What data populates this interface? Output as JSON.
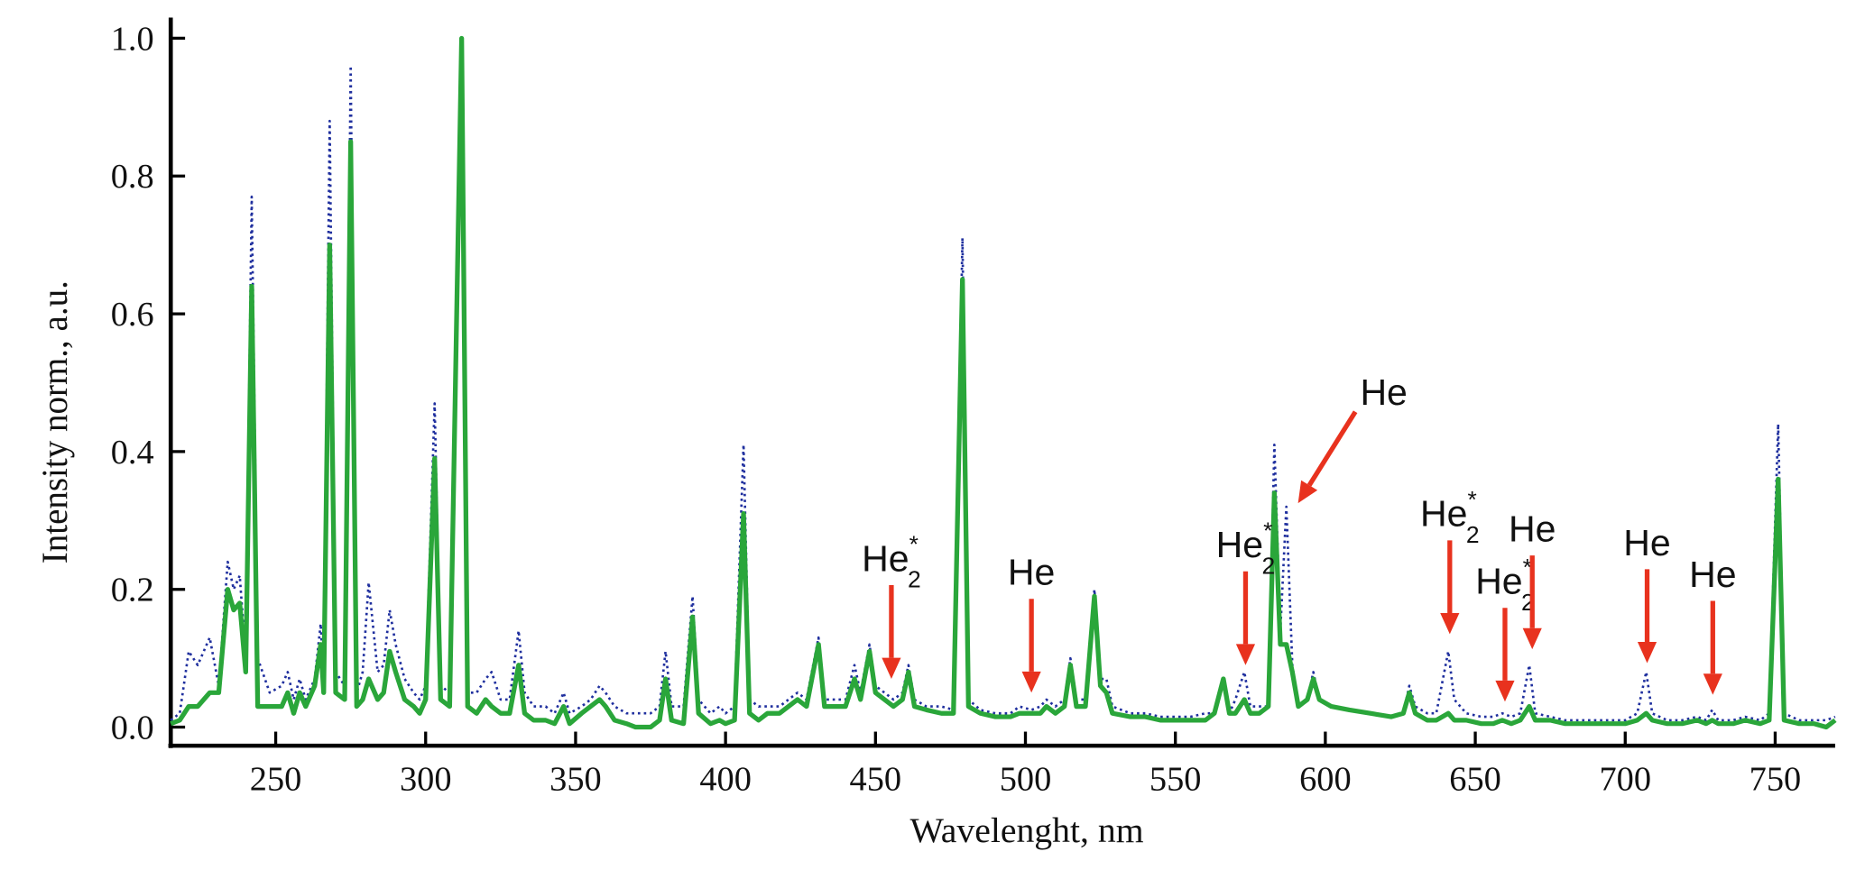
{
  "chart_data": {
    "type": "line",
    "x_label": "Wavelenght, nm",
    "y_label": "Intensity norm., a.u.",
    "xlim": [
      215,
      770
    ],
    "ylim": [
      -0.027,
      1.03
    ],
    "xticks": [
      250,
      300,
      350,
      400,
      450,
      500,
      550,
      600,
      650,
      700,
      750
    ],
    "yticks": [
      {
        "value": 0,
        "label": "0.0"
      },
      {
        "value": 0.2,
        "label": "0.2"
      },
      {
        "value": 0.4,
        "label": "0.4"
      },
      {
        "value": 0.6,
        "label": "0.6"
      },
      {
        "value": 0.8,
        "label": "0.8"
      },
      {
        "value": 1.0,
        "label": "1.0"
      }
    ],
    "x": [
      215,
      218,
      221,
      224,
      228,
      231,
      234,
      236,
      238,
      240,
      242,
      244,
      248,
      252,
      254,
      256,
      258,
      260,
      263,
      265,
      266,
      268,
      270,
      273,
      275,
      277,
      279,
      281,
      284,
      286,
      288,
      290,
      293,
      296,
      298,
      300,
      303,
      305,
      308,
      312,
      314,
      317,
      320,
      322,
      325,
      328,
      331,
      333,
      336,
      340,
      343,
      346,
      348,
      352,
      355,
      358,
      360,
      363,
      367,
      370,
      375,
      378,
      380,
      382,
      386,
      389,
      391,
      395,
      398,
      400,
      403,
      406,
      408,
      411,
      414,
      418,
      421,
      424,
      427,
      431,
      433,
      437,
      440,
      443,
      445,
      448,
      450,
      453,
      456,
      459,
      461,
      463,
      467,
      472,
      476,
      479,
      481,
      485,
      490,
      495,
      498,
      502,
      505,
      507,
      510,
      513,
      515,
      517,
      520,
      523,
      525,
      527,
      529,
      535,
      540,
      545,
      550,
      555,
      560,
      563,
      566,
      568,
      570,
      573,
      575,
      578,
      581,
      583,
      585,
      587,
      589,
      591,
      594,
      596,
      598,
      602,
      608,
      615,
      622,
      626,
      628,
      630,
      634,
      637,
      641,
      643,
      647,
      652,
      656,
      659,
      662,
      665,
      668,
      670,
      675,
      680,
      685,
      690,
      695,
      700,
      704,
      707,
      709,
      714,
      719,
      724,
      727,
      729,
      731,
      736,
      740,
      745,
      748,
      751,
      753,
      758,
      763,
      767,
      770
    ],
    "series": [
      {
        "color": "#1f2f9e",
        "dash": "dotted",
        "values": [
          0.01,
          0.02,
          0.11,
          0.09,
          0.13,
          0.06,
          0.24,
          0.2,
          0.22,
          0.1,
          0.77,
          0.1,
          0.05,
          0.06,
          0.08,
          0.04,
          0.07,
          0.04,
          0.07,
          0.15,
          0.07,
          0.88,
          0.08,
          0.06,
          0.96,
          0.05,
          0.08,
          0.21,
          0.08,
          0.09,
          0.17,
          0.12,
          0.07,
          0.05,
          0.04,
          0.06,
          0.47,
          0.06,
          0.05,
          1.0,
          0.05,
          0.05,
          0.07,
          0.08,
          0.04,
          0.04,
          0.14,
          0.05,
          0.03,
          0.03,
          0.02,
          0.05,
          0.02,
          0.03,
          0.04,
          0.06,
          0.05,
          0.03,
          0.02,
          0.02,
          0.02,
          0.03,
          0.11,
          0.03,
          0.03,
          0.19,
          0.04,
          0.02,
          0.03,
          0.02,
          0.03,
          0.41,
          0.04,
          0.03,
          0.03,
          0.03,
          0.04,
          0.05,
          0.04,
          0.13,
          0.04,
          0.04,
          0.04,
          0.09,
          0.05,
          0.12,
          0.06,
          0.05,
          0.04,
          0.05,
          0.09,
          0.04,
          0.03,
          0.03,
          0.025,
          0.71,
          0.04,
          0.025,
          0.02,
          0.02,
          0.03,
          0.025,
          0.03,
          0.04,
          0.03,
          0.04,
          0.1,
          0.04,
          0.04,
          0.2,
          0.07,
          0.07,
          0.03,
          0.02,
          0.02,
          0.015,
          0.015,
          0.015,
          0.02,
          0.02,
          0.07,
          0.02,
          0.04,
          0.08,
          0.03,
          0.03,
          0.03,
          0.41,
          0.14,
          0.32,
          0.09,
          0.03,
          0.04,
          0.08,
          0.04,
          0.03,
          0.025,
          0.02,
          0.015,
          0.02,
          0.06,
          0.03,
          0.02,
          0.02,
          0.11,
          0.04,
          0.02,
          0.015,
          0.015,
          0.02,
          0.015,
          0.02,
          0.09,
          0.02,
          0.015,
          0.01,
          0.01,
          0.01,
          0.01,
          0.01,
          0.02,
          0.08,
          0.02,
          0.01,
          0.01,
          0.015,
          0.01,
          0.025,
          0.01,
          0.01,
          0.015,
          0.01,
          0.02,
          0.44,
          0.02,
          0.01,
          0.01,
          0.01,
          0.015
        ]
      },
      {
        "color": "#2aa63a",
        "dash": "solid",
        "values": [
          0.005,
          0.01,
          0.03,
          0.03,
          0.05,
          0.05,
          0.2,
          0.17,
          0.18,
          0.08,
          0.64,
          0.03,
          0.03,
          0.03,
          0.05,
          0.02,
          0.05,
          0.03,
          0.06,
          0.12,
          0.05,
          0.7,
          0.05,
          0.04,
          0.85,
          0.03,
          0.04,
          0.07,
          0.04,
          0.05,
          0.11,
          0.08,
          0.04,
          0.03,
          0.02,
          0.04,
          0.39,
          0.04,
          0.03,
          1.0,
          0.03,
          0.02,
          0.04,
          0.03,
          0.02,
          0.02,
          0.09,
          0.02,
          0.01,
          0.01,
          0.005,
          0.03,
          0.005,
          0.02,
          0.03,
          0.04,
          0.03,
          0.01,
          0.005,
          0.0,
          0.0,
          0.01,
          0.07,
          0.01,
          0.005,
          0.16,
          0.02,
          0.005,
          0.01,
          0.005,
          0.01,
          0.31,
          0.02,
          0.01,
          0.02,
          0.02,
          0.03,
          0.04,
          0.03,
          0.12,
          0.03,
          0.03,
          0.03,
          0.07,
          0.04,
          0.11,
          0.05,
          0.04,
          0.03,
          0.04,
          0.08,
          0.03,
          0.025,
          0.02,
          0.02,
          0.65,
          0.03,
          0.02,
          0.015,
          0.015,
          0.02,
          0.02,
          0.02,
          0.03,
          0.02,
          0.03,
          0.09,
          0.03,
          0.03,
          0.19,
          0.06,
          0.05,
          0.02,
          0.015,
          0.015,
          0.01,
          0.01,
          0.01,
          0.01,
          0.02,
          0.07,
          0.02,
          0.02,
          0.04,
          0.02,
          0.02,
          0.03,
          0.34,
          0.12,
          0.12,
          0.08,
          0.03,
          0.04,
          0.07,
          0.04,
          0.03,
          0.025,
          0.02,
          0.015,
          0.02,
          0.05,
          0.02,
          0.01,
          0.01,
          0.02,
          0.01,
          0.01,
          0.005,
          0.005,
          0.01,
          0.005,
          0.01,
          0.03,
          0.01,
          0.01,
          0.005,
          0.005,
          0.005,
          0.005,
          0.005,
          0.01,
          0.02,
          0.01,
          0.005,
          0.005,
          0.01,
          0.005,
          0.01,
          0.005,
          0.005,
          0.01,
          0.005,
          0.01,
          0.36,
          0.01,
          0.005,
          0.005,
          0.0,
          0.01
        ]
      }
    ],
    "annotations": [
      {
        "text": "He",
        "sub": "2",
        "sup": "*",
        "x": 455.3,
        "y": 0.07,
        "arrow": "down"
      },
      {
        "text": "He",
        "x": 502,
        "y": 0.05,
        "arrow": "down"
      },
      {
        "text": "He",
        "sub": "2",
        "sup": "*",
        "x": 573.4,
        "y": 0.09,
        "arrow": "down"
      },
      {
        "text": "He",
        "x": 590.9,
        "y": 0.325,
        "arrow": "diagonal"
      },
      {
        "text": "He",
        "sub": "2",
        "sup": "*",
        "x": 641.5,
        "y": 0.135,
        "arrow": "down"
      },
      {
        "text": "He",
        "sub": "2",
        "sup": "*",
        "x": 659.9,
        "y": 0.037,
        "arrow": "down"
      },
      {
        "text": "He",
        "x": 669,
        "y": 0.113,
        "arrow": "down"
      },
      {
        "text": "He",
        "x": 707.3,
        "y": 0.093,
        "arrow": "down"
      },
      {
        "text": "He",
        "x": 729.2,
        "y": 0.047,
        "arrow": "down"
      }
    ],
    "annotation_color": "#e8321e"
  }
}
